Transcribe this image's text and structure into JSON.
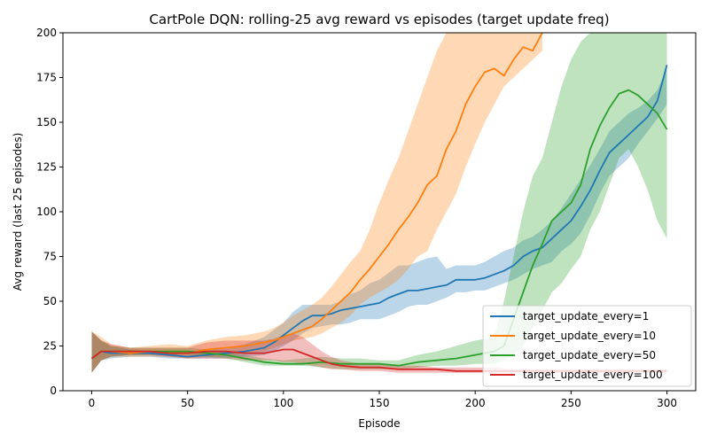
{
  "chart_data": {
    "type": "line",
    "title": "CartPole DQN: rolling-25 avg reward vs episodes (target update freq)",
    "xlabel": "Episode",
    "ylabel": "Avg reward (last 25 episodes)",
    "xlim": [
      -15,
      315
    ],
    "ylim": [
      0,
      200
    ],
    "xticks": [
      0,
      50,
      100,
      150,
      200,
      250,
      300
    ],
    "yticks": [
      0,
      25,
      50,
      75,
      100,
      125,
      150,
      175,
      200
    ],
    "grid": false,
    "legend_position": "lower-right",
    "series": [
      {
        "name": "target_update_every=1",
        "color": "#1f77b4",
        "x": [
          0,
          5,
          10,
          20,
          30,
          40,
          50,
          60,
          70,
          80,
          90,
          95,
          100,
          105,
          110,
          115,
          120,
          125,
          130,
          135,
          140,
          145,
          150,
          155,
          160,
          165,
          170,
          175,
          180,
          185,
          190,
          195,
          200,
          205,
          210,
          215,
          220,
          225,
          230,
          235,
          240,
          245,
          250,
          255,
          260,
          265,
          270,
          275,
          280,
          285,
          290,
          295,
          300
        ],
        "mean": [
          18,
          22,
          21,
          21,
          21,
          20,
          19,
          20,
          21,
          22,
          24,
          27,
          31,
          35,
          39,
          42,
          42,
          43,
          45,
          46,
          47,
          48,
          49,
          52,
          54,
          56,
          56,
          57,
          58,
          59,
          62,
          62,
          62,
          63,
          65,
          67,
          70,
          75,
          78,
          80,
          85,
          90,
          95,
          103,
          112,
          123,
          133,
          138,
          143,
          148,
          153,
          162,
          182
        ],
        "upper": [
          33,
          28,
          25,
          23,
          22,
          21,
          20,
          22,
          24,
          26,
          30,
          34,
          38,
          44,
          48,
          48,
          48,
          48,
          50,
          54,
          56,
          60,
          62,
          66,
          70,
          70,
          72,
          74,
          75,
          68,
          70,
          70,
          70,
          72,
          75,
          78,
          80,
          84,
          86,
          90,
          95,
          102,
          110,
          118,
          126,
          135,
          145,
          150,
          155,
          158,
          162,
          168,
          180
        ],
        "lower": [
          10,
          17,
          18,
          19,
          19,
          18,
          18,
          18,
          18,
          19,
          20,
          22,
          25,
          28,
          32,
          35,
          36,
          37,
          37,
          38,
          40,
          40,
          40,
          42,
          44,
          47,
          48,
          48,
          50,
          52,
          55,
          55,
          56,
          56,
          58,
          60,
          62,
          65,
          68,
          70,
          72,
          78,
          82,
          88,
          98,
          110,
          120,
          125,
          130,
          138,
          145,
          152,
          160
        ]
      },
      {
        "name": "target_update_every=10",
        "color": "#ff7f0e",
        "x": [
          0,
          5,
          10,
          20,
          30,
          40,
          50,
          60,
          70,
          80,
          90,
          95,
          100,
          105,
          110,
          115,
          120,
          125,
          130,
          135,
          140,
          145,
          150,
          155,
          160,
          165,
          170,
          175,
          180,
          185,
          190,
          195,
          200,
          205,
          210,
          215,
          220,
          225,
          230,
          235
        ],
        "mean": [
          18,
          22,
          22,
          21,
          22,
          22,
          21,
          23,
          24,
          25,
          27,
          28,
          30,
          32,
          34,
          36,
          40,
          45,
          50,
          55,
          62,
          68,
          75,
          82,
          90,
          97,
          105,
          115,
          120,
          135,
          145,
          160,
          170,
          178,
          180,
          176,
          185,
          192,
          190,
          200
        ],
        "upper": [
          33,
          30,
          26,
          24,
          25,
          26,
          25,
          28,
          30,
          31,
          33,
          35,
          38,
          42,
          45,
          48,
          52,
          58,
          65,
          72,
          78,
          90,
          105,
          118,
          130,
          145,
          160,
          175,
          190,
          200,
          200,
          200,
          200,
          200,
          200,
          200,
          200,
          200,
          200,
          200
        ],
        "lower": [
          10,
          17,
          19,
          19,
          19,
          19,
          18,
          19,
          20,
          21,
          22,
          24,
          26,
          28,
          29,
          30,
          32,
          35,
          38,
          42,
          48,
          52,
          55,
          58,
          62,
          68,
          75,
          78,
          90,
          100,
          110,
          125,
          138,
          150,
          160,
          170,
          175,
          180,
          185,
          190
        ]
      },
      {
        "name": "target_update_every=50",
        "color": "#2ca02c",
        "x": [
          0,
          5,
          10,
          20,
          30,
          40,
          50,
          60,
          70,
          80,
          90,
          100,
          110,
          120,
          130,
          140,
          150,
          160,
          170,
          180,
          190,
          200,
          210,
          215,
          220,
          225,
          230,
          235,
          240,
          245,
          250,
          255,
          260,
          265,
          270,
          275,
          280,
          285,
          290,
          295,
          300
        ],
        "mean": [
          18,
          22,
          22,
          22,
          22,
          22,
          22,
          21,
          20,
          18,
          16,
          15,
          15,
          16,
          15,
          15,
          15,
          14,
          16,
          17,
          18,
          20,
          22,
          25,
          40,
          55,
          70,
          82,
          95,
          100,
          105,
          115,
          135,
          148,
          158,
          166,
          168,
          165,
          160,
          155,
          146
        ],
        "upper": [
          33,
          28,
          25,
          24,
          24,
          24,
          24,
          23,
          22,
          20,
          18,
          17,
          18,
          19,
          18,
          18,
          17,
          17,
          20,
          22,
          25,
          28,
          30,
          50,
          75,
          100,
          120,
          130,
          150,
          170,
          185,
          195,
          200,
          200,
          200,
          200,
          200,
          200,
          200,
          200,
          200
        ],
        "lower": [
          10,
          17,
          19,
          20,
          20,
          20,
          20,
          19,
          18,
          16,
          14,
          14,
          14,
          13,
          12,
          12,
          12,
          12,
          13,
          14,
          14,
          15,
          15,
          17,
          20,
          25,
          35,
          45,
          55,
          60,
          68,
          75,
          90,
          100,
          115,
          130,
          135,
          125,
          112,
          95,
          85
        ]
      },
      {
        "name": "target_update_every=100",
        "color": "#d62728",
        "x": [
          0,
          5,
          10,
          20,
          30,
          40,
          50,
          60,
          70,
          80,
          90,
          95,
          100,
          105,
          110,
          115,
          120,
          125,
          130,
          140,
          150,
          160,
          170,
          180,
          190,
          200,
          210,
          220,
          230,
          240,
          250,
          260,
          270,
          280,
          290,
          300
        ],
        "mean": [
          18,
          22,
          22,
          22,
          22,
          21,
          21,
          22,
          22,
          21,
          21,
          22,
          23,
          23,
          21,
          19,
          17,
          15,
          14,
          13,
          13,
          12,
          12,
          12,
          11,
          11,
          11,
          11,
          11,
          11,
          11,
          11,
          11,
          11,
          11,
          11
        ],
        "upper": [
          33,
          28,
          26,
          24,
          24,
          24,
          24,
          27,
          28,
          28,
          28,
          29,
          31,
          32,
          30,
          26,
          22,
          19,
          17,
          15,
          15,
          14,
          14,
          13,
          13,
          13,
          13,
          12,
          12,
          12,
          12,
          12,
          12,
          12,
          12,
          12
        ],
        "lower": [
          10,
          17,
          19,
          20,
          20,
          19,
          18,
          18,
          18,
          17,
          17,
          17,
          16,
          16,
          15,
          14,
          13,
          12,
          12,
          11,
          11,
          10,
          10,
          10,
          10,
          10,
          10,
          10,
          10,
          10,
          10,
          10,
          10,
          10,
          10,
          10
        ]
      }
    ]
  }
}
